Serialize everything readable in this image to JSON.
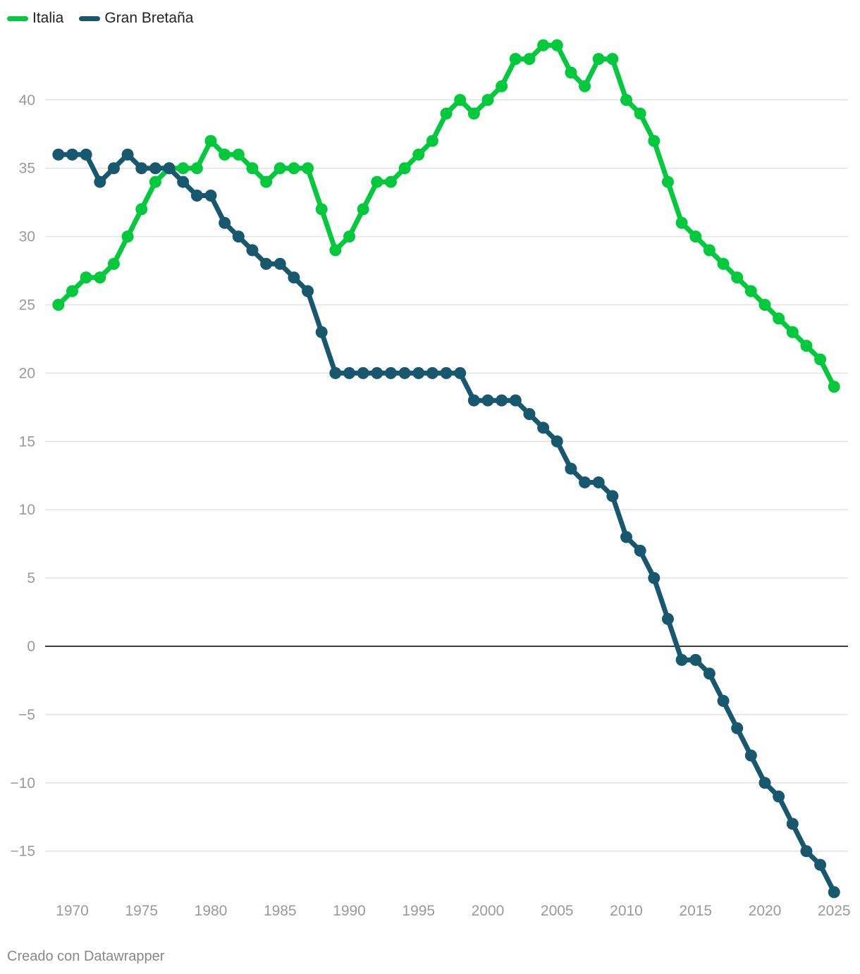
{
  "chart_data": {
    "type": "line",
    "title": "",
    "xlabel": "",
    "ylabel": "",
    "xlim": [
      1968.9,
      2025.6
    ],
    "ylim": [
      -18,
      45
    ],
    "yticks": [
      40,
      35,
      30,
      25,
      20,
      15,
      10,
      5,
      0,
      -5,
      -10,
      -15
    ],
    "ytick_labels": [
      "40",
      "35",
      "30",
      "25",
      "20",
      "15",
      "10",
      "5",
      "0",
      "−5",
      "−10",
      "−15"
    ],
    "xticks": [
      1970,
      1975,
      1980,
      1985,
      1990,
      1995,
      2000,
      2005,
      2010,
      2015,
      2020,
      2025
    ],
    "xtick_labels": [
      "1970",
      "1975",
      "1980",
      "1985",
      "1990",
      "1995",
      "2000",
      "2005",
      "2010",
      "2015",
      "2020",
      "2025"
    ],
    "legend_position": "top-left",
    "grid": true,
    "series": [
      {
        "name": "Italia",
        "color": "#00c93c",
        "x": [
          1969,
          1970,
          1971,
          1972,
          1973,
          1974,
          1975,
          1976,
          1977,
          1978,
          1979,
          1980,
          1981,
          1982,
          1983,
          1984,
          1985,
          1986,
          1987,
          1988,
          1989,
          1990,
          1991,
          1992,
          1993,
          1994,
          1995,
          1996,
          1997,
          1998,
          1999,
          2000,
          2001,
          2002,
          2003,
          2004,
          2005,
          2006,
          2007,
          2008,
          2009,
          2010,
          2011,
          2012,
          2013,
          2014,
          2015,
          2016,
          2017,
          2018,
          2019,
          2020,
          2021,
          2022,
          2023,
          2024,
          2025
        ],
        "values": [
          25,
          26,
          27,
          27,
          28,
          30,
          32,
          34,
          35,
          35,
          35,
          37,
          36,
          36,
          35,
          34,
          35,
          35,
          35,
          32,
          29,
          30,
          32,
          34,
          34,
          35,
          36,
          37,
          39,
          40,
          39,
          40,
          41,
          43,
          43,
          44,
          44,
          42,
          41,
          43,
          43,
          40,
          39,
          37,
          34,
          31,
          30,
          29,
          28,
          27,
          26,
          25,
          24,
          23,
          22,
          21,
          19
        ]
      },
      {
        "name": "Gran Bretaña",
        "color": "#17586f",
        "x": [
          1969,
          1970,
          1971,
          1972,
          1973,
          1974,
          1975,
          1976,
          1977,
          1978,
          1979,
          1980,
          1981,
          1982,
          1983,
          1984,
          1985,
          1986,
          1987,
          1988,
          1989,
          1990,
          1991,
          1992,
          1993,
          1994,
          1995,
          1996,
          1997,
          1998,
          1999,
          2000,
          2001,
          2002,
          2003,
          2004,
          2005,
          2006,
          2007,
          2008,
          2009,
          2010,
          2011,
          2012,
          2013,
          2014,
          2015,
          2016,
          2017,
          2018,
          2019,
          2020,
          2021,
          2022,
          2023,
          2024,
          2025
        ],
        "values": [
          36,
          36,
          36,
          34,
          35,
          36,
          35,
          35,
          35,
          34,
          33,
          33,
          31,
          30,
          29,
          28,
          28,
          27,
          26,
          23,
          20,
          20,
          20,
          20,
          20,
          20,
          20,
          20,
          20,
          20,
          18,
          18,
          18,
          18,
          17,
          16,
          15,
          13,
          12,
          12,
          11,
          8,
          7,
          5,
          2,
          -1,
          -1,
          -2,
          -4,
          -6,
          -8,
          -10,
          -11,
          -13,
          -15,
          -16,
          -18
        ]
      }
    ]
  },
  "footer": {
    "credit": "Creado con Datawrapper"
  }
}
